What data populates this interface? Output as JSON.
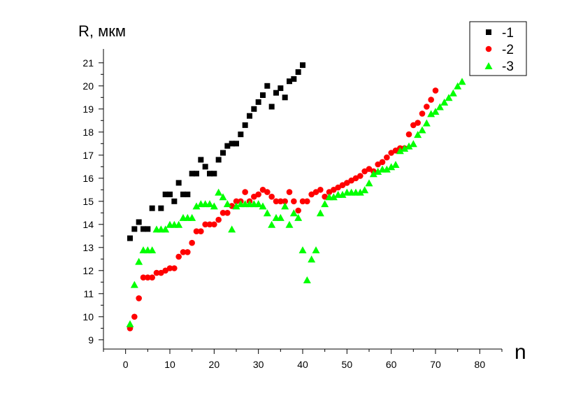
{
  "chart_data": {
    "type": "scatter",
    "ylabel": "R, мкм",
    "xlabel": "n",
    "xlim": [
      -5,
      85
    ],
    "ylim": [
      8.6,
      21.6
    ],
    "x_ticks": [
      0,
      10,
      20,
      30,
      40,
      50,
      60,
      70,
      80
    ],
    "y_ticks": [
      9,
      10,
      11,
      12,
      13,
      14,
      15,
      16,
      17,
      18,
      19,
      20,
      21
    ],
    "legend_position": "top-right",
    "grid": false,
    "series": [
      {
        "name": "-1",
        "marker": "square",
        "color": "#000000",
        "points": [
          [
            1,
            13.4
          ],
          [
            2,
            13.8
          ],
          [
            3,
            14.1
          ],
          [
            4,
            13.8
          ],
          [
            5,
            13.8
          ],
          [
            6,
            14.7
          ],
          [
            8,
            14.7
          ],
          [
            9,
            15.3
          ],
          [
            10,
            15.3
          ],
          [
            11,
            15.0
          ],
          [
            12,
            15.8
          ],
          [
            13,
            15.3
          ],
          [
            14,
            15.3
          ],
          [
            15,
            16.2
          ],
          [
            16,
            16.2
          ],
          [
            17,
            16.8
          ],
          [
            18,
            16.5
          ],
          [
            19,
            16.2
          ],
          [
            20,
            16.2
          ],
          [
            21,
            16.8
          ],
          [
            22,
            17.1
          ],
          [
            23,
            17.4
          ],
          [
            24,
            17.5
          ],
          [
            25,
            17.5
          ],
          [
            26,
            17.9
          ],
          [
            27,
            18.3
          ],
          [
            28,
            18.7
          ],
          [
            29,
            19.0
          ],
          [
            30,
            19.3
          ],
          [
            31,
            19.6
          ],
          [
            32,
            20.0
          ],
          [
            33,
            19.1
          ],
          [
            34,
            19.7
          ],
          [
            35,
            19.9
          ],
          [
            36,
            19.5
          ],
          [
            37,
            20.2
          ],
          [
            38,
            20.3
          ],
          [
            39,
            20.6
          ],
          [
            40,
            20.9
          ]
        ]
      },
      {
        "name": "-2",
        "marker": "circle",
        "color": "#ff0000",
        "points": [
          [
            1,
            9.5
          ],
          [
            2,
            10.0
          ],
          [
            3,
            10.8
          ],
          [
            4,
            11.7
          ],
          [
            5,
            11.7
          ],
          [
            6,
            11.7
          ],
          [
            7,
            11.9
          ],
          [
            8,
            11.9
          ],
          [
            9,
            12.0
          ],
          [
            10,
            12.1
          ],
          [
            11,
            12.1
          ],
          [
            12,
            12.6
          ],
          [
            13,
            12.8
          ],
          [
            14,
            12.8
          ],
          [
            15,
            13.2
          ],
          [
            16,
            13.7
          ],
          [
            17,
            13.7
          ],
          [
            18,
            14.0
          ],
          [
            19,
            14.0
          ],
          [
            20,
            14.0
          ],
          [
            21,
            14.2
          ],
          [
            22,
            14.5
          ],
          [
            23,
            14.5
          ],
          [
            24,
            14.8
          ],
          [
            25,
            15.0
          ],
          [
            26,
            15.0
          ],
          [
            27,
            15.4
          ],
          [
            28,
            15.0
          ],
          [
            29,
            15.2
          ],
          [
            30,
            15.3
          ],
          [
            31,
            15.5
          ],
          [
            32,
            15.4
          ],
          [
            33,
            15.2
          ],
          [
            34,
            15.0
          ],
          [
            35,
            15.0
          ],
          [
            36,
            15.0
          ],
          [
            37,
            15.4
          ],
          [
            38,
            15.0
          ],
          [
            39,
            14.6
          ],
          [
            40,
            15.0
          ],
          [
            41,
            15.0
          ],
          [
            42,
            15.3
          ],
          [
            43,
            15.4
          ],
          [
            44,
            15.5
          ],
          [
            45,
            15.2
          ],
          [
            46,
            15.4
          ],
          [
            47,
            15.5
          ],
          [
            48,
            15.6
          ],
          [
            49,
            15.7
          ],
          [
            50,
            15.8
          ],
          [
            51,
            15.9
          ],
          [
            52,
            16.0
          ],
          [
            53,
            16.1
          ],
          [
            54,
            16.3
          ],
          [
            55,
            16.4
          ],
          [
            56,
            16.3
          ],
          [
            57,
            16.6
          ],
          [
            58,
            16.7
          ],
          [
            59,
            16.9
          ],
          [
            60,
            17.1
          ],
          [
            61,
            17.2
          ],
          [
            62,
            17.3
          ],
          [
            63,
            17.3
          ],
          [
            64,
            17.9
          ],
          [
            65,
            18.3
          ],
          [
            66,
            18.4
          ],
          [
            67,
            18.8
          ],
          [
            68,
            19.1
          ],
          [
            69,
            19.4
          ],
          [
            70,
            19.8
          ]
        ]
      },
      {
        "name": "-3",
        "marker": "triangle",
        "color": "#00ff00",
        "points": [
          [
            1,
            9.7
          ],
          [
            2,
            11.4
          ],
          [
            3,
            12.4
          ],
          [
            4,
            12.9
          ],
          [
            5,
            12.9
          ],
          [
            6,
            12.9
          ],
          [
            7,
            13.8
          ],
          [
            8,
            13.8
          ],
          [
            9,
            13.8
          ],
          [
            10,
            14.0
          ],
          [
            11,
            14.0
          ],
          [
            12,
            14.0
          ],
          [
            13,
            14.3
          ],
          [
            14,
            14.3
          ],
          [
            15,
            14.3
          ],
          [
            16,
            14.8
          ],
          [
            17,
            14.9
          ],
          [
            18,
            14.9
          ],
          [
            19,
            14.9
          ],
          [
            20,
            14.8
          ],
          [
            21,
            15.4
          ],
          [
            22,
            15.2
          ],
          [
            23,
            14.9
          ],
          [
            24,
            13.8
          ],
          [
            25,
            14.8
          ],
          [
            26,
            14.9
          ],
          [
            27,
            14.9
          ],
          [
            28,
            14.9
          ],
          [
            29,
            14.9
          ],
          [
            30,
            14.9
          ],
          [
            31,
            14.8
          ],
          [
            32,
            14.5
          ],
          [
            33,
            14.0
          ],
          [
            34,
            14.3
          ],
          [
            35,
            14.3
          ],
          [
            36,
            14.8
          ],
          [
            37,
            14.0
          ],
          [
            38,
            14.5
          ],
          [
            39,
            14.3
          ],
          [
            40,
            12.9
          ],
          [
            41,
            11.6
          ],
          [
            42,
            12.5
          ],
          [
            43,
            12.9
          ],
          [
            44,
            14.5
          ],
          [
            45,
            14.9
          ],
          [
            46,
            15.2
          ],
          [
            47,
            15.2
          ],
          [
            48,
            15.3
          ],
          [
            49,
            15.3
          ],
          [
            50,
            15.4
          ],
          [
            51,
            15.4
          ],
          [
            52,
            15.4
          ],
          [
            53,
            15.4
          ],
          [
            54,
            15.5
          ],
          [
            55,
            15.8
          ],
          [
            56,
            16.2
          ],
          [
            57,
            16.3
          ],
          [
            58,
            16.4
          ],
          [
            59,
            16.4
          ],
          [
            60,
            16.5
          ],
          [
            61,
            16.6
          ],
          [
            62,
            17.2
          ],
          [
            63,
            17.3
          ],
          [
            64,
            17.4
          ],
          [
            65,
            17.5
          ],
          [
            66,
            17.9
          ],
          [
            67,
            18.1
          ],
          [
            68,
            18.4
          ],
          [
            69,
            18.8
          ],
          [
            70,
            18.9
          ],
          [
            71,
            19.1
          ],
          [
            72,
            19.3
          ],
          [
            73,
            19.5
          ],
          [
            74,
            19.7
          ],
          [
            75,
            20.0
          ],
          [
            76,
            20.2
          ]
        ]
      }
    ]
  }
}
